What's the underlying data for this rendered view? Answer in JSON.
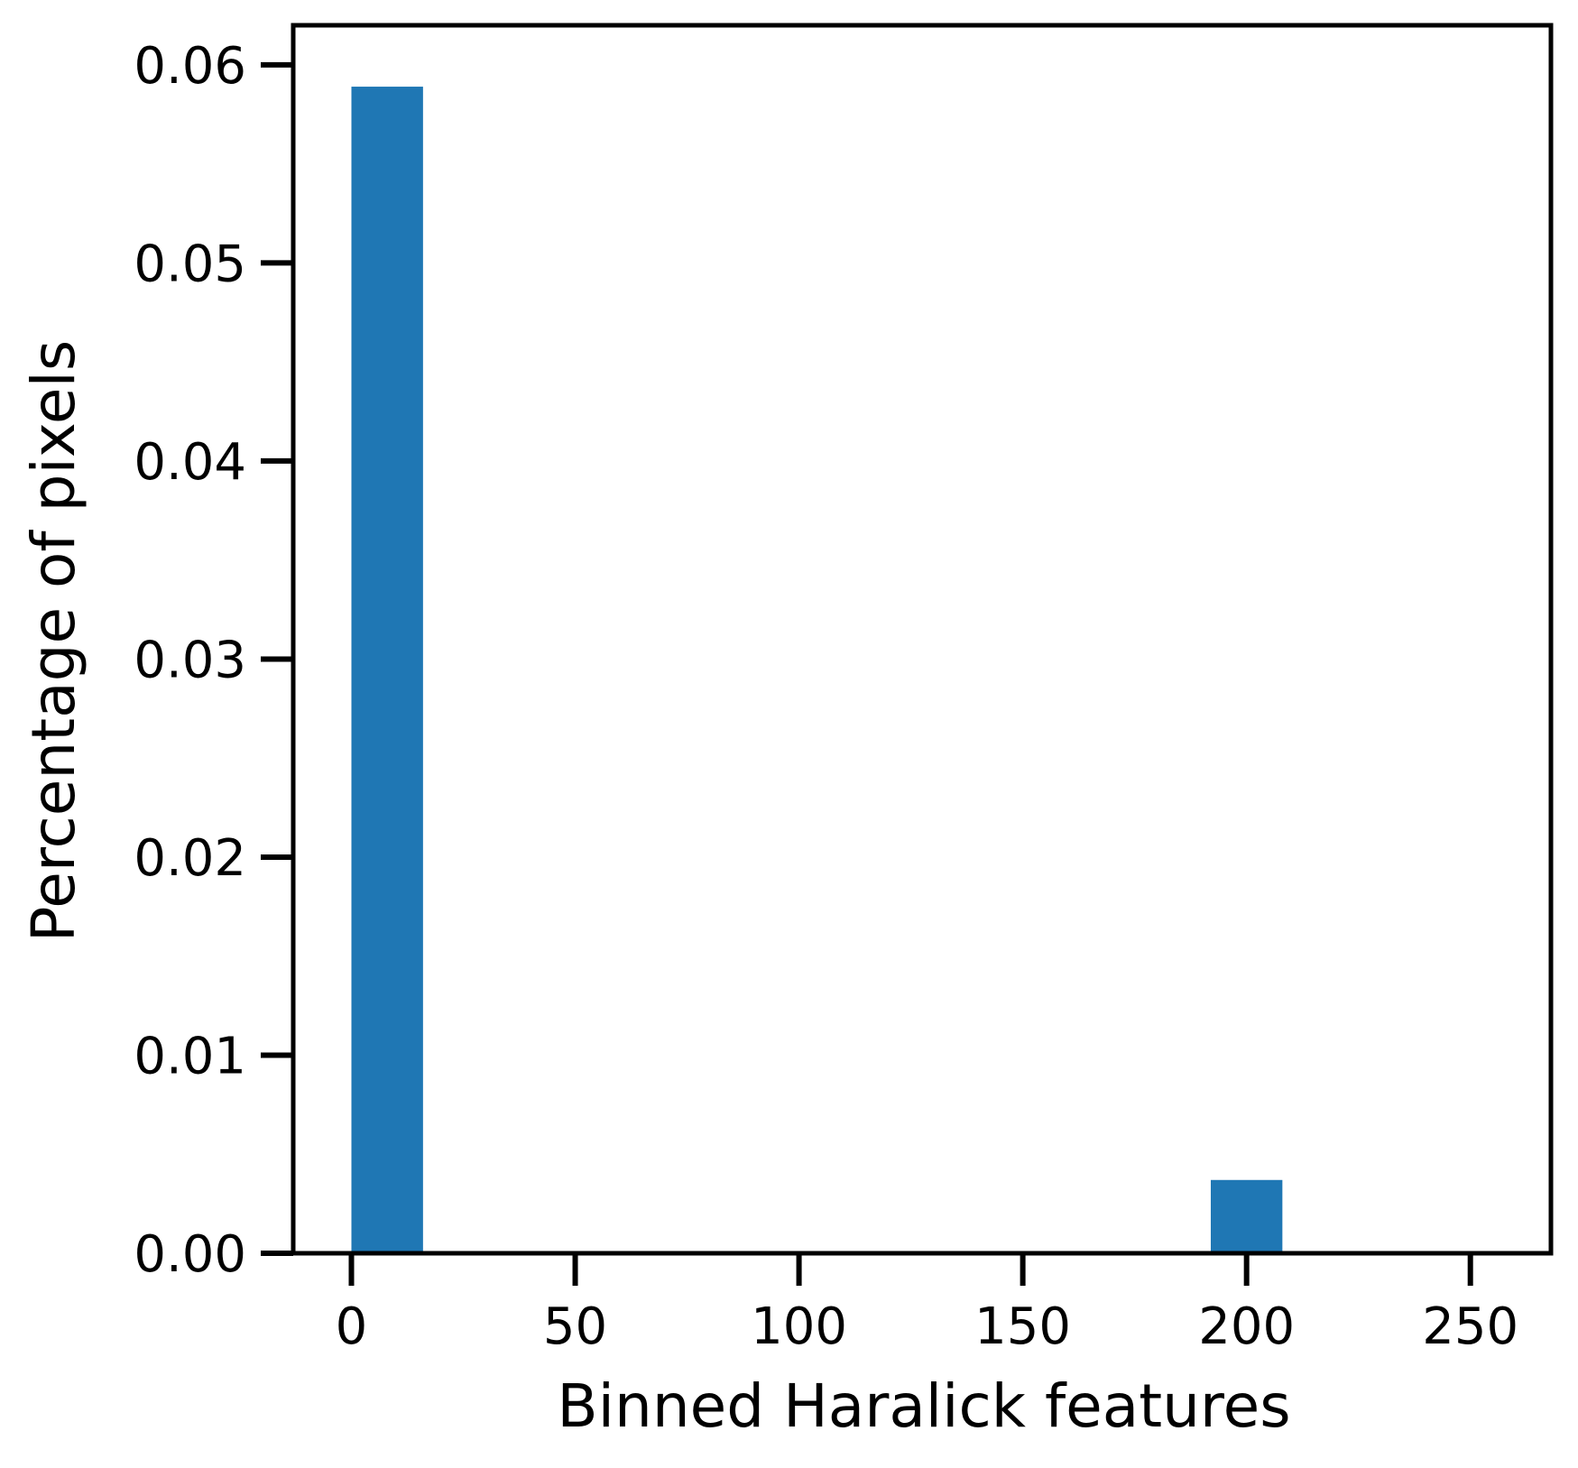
{
  "chart_data": {
    "type": "bar",
    "title": "",
    "xlabel": "Binned Haralick features",
    "ylabel": "Percentage of pixels",
    "xlim": [
      -13,
      268
    ],
    "ylim": [
      0,
      0.062
    ],
    "bar_width": 16,
    "bars": [
      {
        "x": 8,
        "value": 0.0589
      },
      {
        "x": 200,
        "value": 0.0037
      }
    ],
    "xticks": [
      {
        "value": 0,
        "label": "0"
      },
      {
        "value": 50,
        "label": "50"
      },
      {
        "value": 100,
        "label": "100"
      },
      {
        "value": 150,
        "label": "150"
      },
      {
        "value": 200,
        "label": "200"
      },
      {
        "value": 250,
        "label": "250"
      }
    ],
    "yticks": [
      {
        "value": 0.0,
        "label": "0.00"
      },
      {
        "value": 0.01,
        "label": "0.01"
      },
      {
        "value": 0.02,
        "label": "0.02"
      },
      {
        "value": 0.03,
        "label": "0.03"
      },
      {
        "value": 0.04,
        "label": "0.04"
      },
      {
        "value": 0.05,
        "label": "0.05"
      },
      {
        "value": 0.06,
        "label": "0.06"
      }
    ],
    "grid": false,
    "legend": "none",
    "bar_color": "#1f77b4",
    "axis_color": "#000000"
  }
}
